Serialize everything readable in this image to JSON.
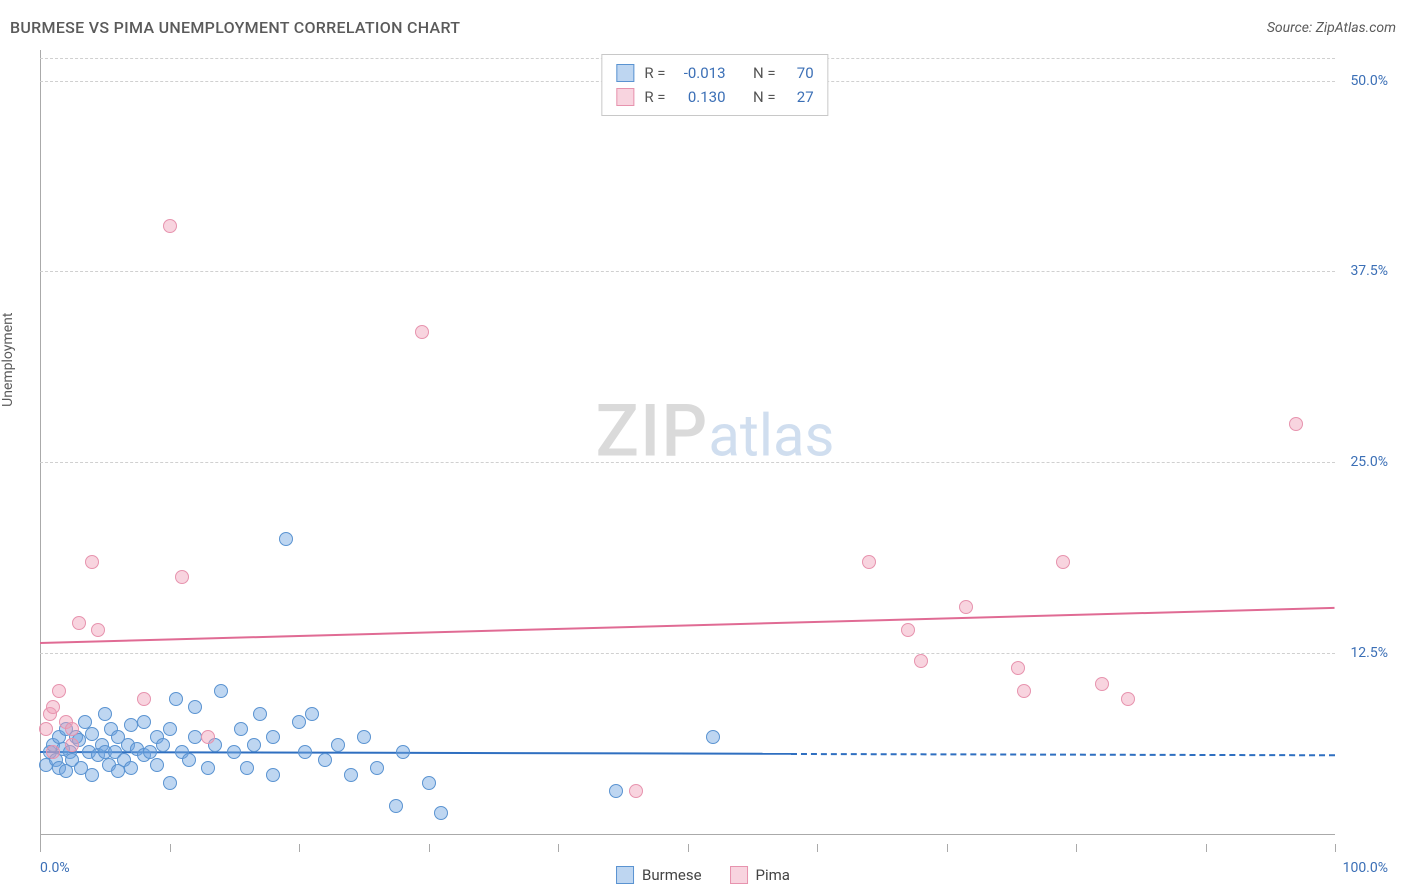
{
  "title": "BURMESE VS PIMA UNEMPLOYMENT CORRELATION CHART",
  "source": "Source: ZipAtlas.com",
  "y_axis_label": "Unemployment",
  "watermark": {
    "part1": "ZIP",
    "part2": "atlas"
  },
  "chart": {
    "type": "scatter",
    "xlim": [
      0,
      100
    ],
    "ylim": [
      0,
      52
    ],
    "background_color": "#ffffff",
    "grid_color": "#d0d0d0",
    "axis_color": "#aaaaaa",
    "tick_label_color": "#3b6fb6",
    "y_ticks": [
      {
        "v": 12.5,
        "label": "12.5%"
      },
      {
        "v": 25.0,
        "label": "25.0%"
      },
      {
        "v": 37.5,
        "label": "37.5%"
      },
      {
        "v": 50.0,
        "label": "50.0%"
      }
    ],
    "x_ticks_major": [
      0,
      10,
      20,
      30,
      40,
      50,
      60,
      70,
      80,
      90,
      100
    ],
    "x_tick_labels": [
      {
        "v": 0,
        "label": "0.0%"
      },
      {
        "v": 100,
        "label": "100.0%"
      }
    ],
    "series": [
      {
        "name": "Burmese",
        "color_fill": "rgba(111,163,224,0.45)",
        "color_stroke": "#5a93d1",
        "trend_color": "#2f6fc0",
        "marker_radius": 7,
        "R": "-0.013",
        "N": "70",
        "trend": {
          "x0": 0,
          "y0": 6.1,
          "x1": 100,
          "y1": 5.9,
          "solid_until_x": 58
        },
        "points": [
          [
            0.5,
            5.2
          ],
          [
            0.8,
            6.0
          ],
          [
            1.0,
            6.5
          ],
          [
            1.2,
            5.5
          ],
          [
            1.5,
            7.0
          ],
          [
            1.5,
            5.0
          ],
          [
            1.8,
            6.2
          ],
          [
            2.0,
            7.5
          ],
          [
            2.0,
            4.8
          ],
          [
            2.3,
            6.0
          ],
          [
            2.5,
            5.5
          ],
          [
            2.8,
            7.0
          ],
          [
            3.0,
            6.8
          ],
          [
            3.2,
            5.0
          ],
          [
            3.5,
            8.0
          ],
          [
            3.8,
            6.0
          ],
          [
            4.0,
            7.2
          ],
          [
            4.0,
            4.5
          ],
          [
            4.5,
            5.8
          ],
          [
            4.8,
            6.5
          ],
          [
            5.0,
            6.0
          ],
          [
            5.0,
            8.5
          ],
          [
            5.3,
            5.2
          ],
          [
            5.5,
            7.5
          ],
          [
            5.8,
            6.0
          ],
          [
            6.0,
            4.8
          ],
          [
            6.0,
            7.0
          ],
          [
            6.5,
            5.5
          ],
          [
            6.8,
            6.5
          ],
          [
            7.0,
            7.8
          ],
          [
            7.0,
            5.0
          ],
          [
            7.5,
            6.2
          ],
          [
            8.0,
            5.8
          ],
          [
            8.0,
            8.0
          ],
          [
            8.5,
            6.0
          ],
          [
            9.0,
            7.0
          ],
          [
            9.0,
            5.2
          ],
          [
            9.5,
            6.5
          ],
          [
            10.0,
            7.5
          ],
          [
            10.0,
            4.0
          ],
          [
            10.5,
            9.5
          ],
          [
            11.0,
            6.0
          ],
          [
            11.5,
            5.5
          ],
          [
            12.0,
            7.0
          ],
          [
            12.0,
            9.0
          ],
          [
            13.0,
            5.0
          ],
          [
            13.5,
            6.5
          ],
          [
            14.0,
            10.0
          ],
          [
            15.0,
            6.0
          ],
          [
            15.5,
            7.5
          ],
          [
            16.0,
            5.0
          ],
          [
            16.5,
            6.5
          ],
          [
            17.0,
            8.5
          ],
          [
            18.0,
            7.0
          ],
          [
            18.0,
            4.5
          ],
          [
            19.0,
            20.0
          ],
          [
            20.0,
            8.0
          ],
          [
            20.5,
            6.0
          ],
          [
            21.0,
            8.5
          ],
          [
            22.0,
            5.5
          ],
          [
            23.0,
            6.5
          ],
          [
            24.0,
            4.5
          ],
          [
            25.0,
            7.0
          ],
          [
            26.0,
            5.0
          ],
          [
            27.5,
            2.5
          ],
          [
            28.0,
            6.0
          ],
          [
            30.0,
            4.0
          ],
          [
            31.0,
            2.0
          ],
          [
            44.5,
            3.5
          ],
          [
            52.0,
            7.0
          ]
        ]
      },
      {
        "name": "Pima",
        "color_fill": "rgba(240,160,185,0.45)",
        "color_stroke": "#e793ae",
        "trend_color": "#e06b94",
        "marker_radius": 7,
        "R": "0.130",
        "N": "27",
        "trend": {
          "x0": 0,
          "y0": 13.2,
          "x1": 100,
          "y1": 15.5,
          "solid_until_x": 100
        },
        "points": [
          [
            0.5,
            7.5
          ],
          [
            0.8,
            8.5
          ],
          [
            1.0,
            9.0
          ],
          [
            1.0,
            6.0
          ],
          [
            1.5,
            10.0
          ],
          [
            2.0,
            8.0
          ],
          [
            2.5,
            6.5
          ],
          [
            2.5,
            7.5
          ],
          [
            3.0,
            14.5
          ],
          [
            4.0,
            18.5
          ],
          [
            4.5,
            14.0
          ],
          [
            8.0,
            9.5
          ],
          [
            10.0,
            40.5
          ],
          [
            11.0,
            17.5
          ],
          [
            13.0,
            7.0
          ],
          [
            29.5,
            33.5
          ],
          [
            46.0,
            3.5
          ],
          [
            64.0,
            18.5
          ],
          [
            67.0,
            14.0
          ],
          [
            68.0,
            12.0
          ],
          [
            71.5,
            15.5
          ],
          [
            75.5,
            11.5
          ],
          [
            76.0,
            10.0
          ],
          [
            79.0,
            18.5
          ],
          [
            82.0,
            10.5
          ],
          [
            84.0,
            9.5
          ],
          [
            97.0,
            27.5
          ]
        ]
      }
    ]
  },
  "legend": {
    "top_stats_labels": {
      "R": "R =",
      "N": "N ="
    },
    "bottom_items": [
      "Burmese",
      "Pima"
    ]
  }
}
